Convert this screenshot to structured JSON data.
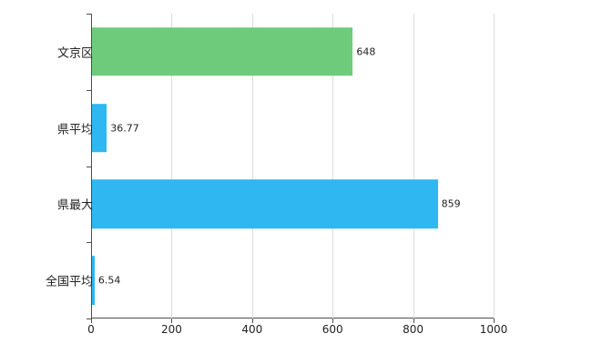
{
  "chart_data": {
    "type": "bar",
    "orientation": "horizontal",
    "title": "",
    "xlabel": "",
    "ylabel": "",
    "categories": [
      "文京区",
      "県平均",
      "県最大",
      "全国平均"
    ],
    "values": [
      648,
      36.77,
      859,
      6.54
    ],
    "value_labels": [
      "648",
      "36.77",
      "859",
      "6.54"
    ],
    "bar_colors": [
      "#6fcb7c",
      "#2eb7f0",
      "#2eb7f0",
      "#2eb7f0"
    ],
    "xlim": [
      0,
      1000
    ],
    "xticks": [
      0,
      200,
      400,
      600,
      800,
      1000
    ],
    "xtick_labels": [
      "0",
      "200",
      "400",
      "600",
      "800",
      "1000"
    ],
    "grid": true,
    "legend_position": "none"
  },
  "colors": {
    "green_bar": "#6fcb7c",
    "blue_bar": "#2eb7f0",
    "axis": "#4d4d4d",
    "gridline": "#dcdcdc",
    "text": "#222222",
    "background": "#ffffff"
  }
}
